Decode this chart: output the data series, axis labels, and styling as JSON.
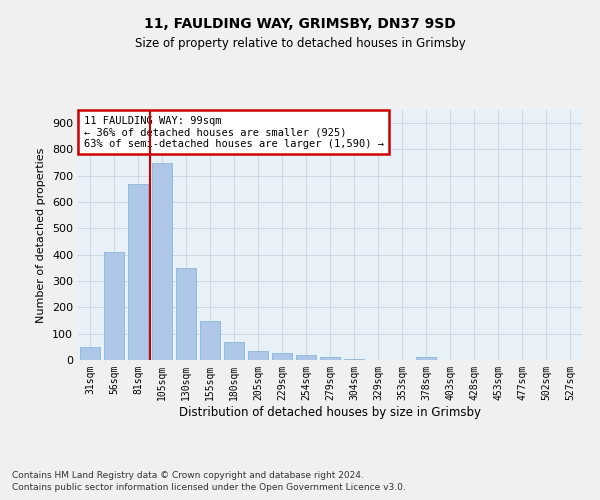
{
  "title1": "11, FAULDING WAY, GRIMSBY, DN37 9SD",
  "title2": "Size of property relative to detached houses in Grimsby",
  "xlabel": "Distribution of detached houses by size in Grimsby",
  "ylabel": "Number of detached properties",
  "categories": [
    "31sqm",
    "56sqm",
    "81sqm",
    "105sqm",
    "130sqm",
    "155sqm",
    "180sqm",
    "205sqm",
    "229sqm",
    "254sqm",
    "279sqm",
    "304sqm",
    "329sqm",
    "353sqm",
    "378sqm",
    "403sqm",
    "428sqm",
    "453sqm",
    "477sqm",
    "502sqm",
    "527sqm"
  ],
  "values": [
    50,
    410,
    670,
    750,
    350,
    150,
    70,
    35,
    28,
    18,
    10,
    5,
    0,
    0,
    10,
    0,
    0,
    0,
    0,
    0,
    0
  ],
  "bar_color": "#aec6e8",
  "bar_edge_color": "#7bafd4",
  "annotation_text": "11 FAULDING WAY: 99sqm\n← 36% of detached houses are smaller (925)\n63% of semi-detached houses are larger (1,590) →",
  "annotation_box_color": "#ffffff",
  "annotation_box_edge_color": "#cc0000",
  "vline_color": "#cc0000",
  "vline_x": 2.5,
  "ylim": [
    0,
    950
  ],
  "yticks": [
    0,
    100,
    200,
    300,
    400,
    500,
    600,
    700,
    800,
    900
  ],
  "grid_color": "#cdd8e3",
  "bg_color": "#e8f0f8",
  "fig_bg_color": "#f0f0f0",
  "footer1": "Contains HM Land Registry data © Crown copyright and database right 2024.",
  "footer2": "Contains public sector information licensed under the Open Government Licence v3.0."
}
